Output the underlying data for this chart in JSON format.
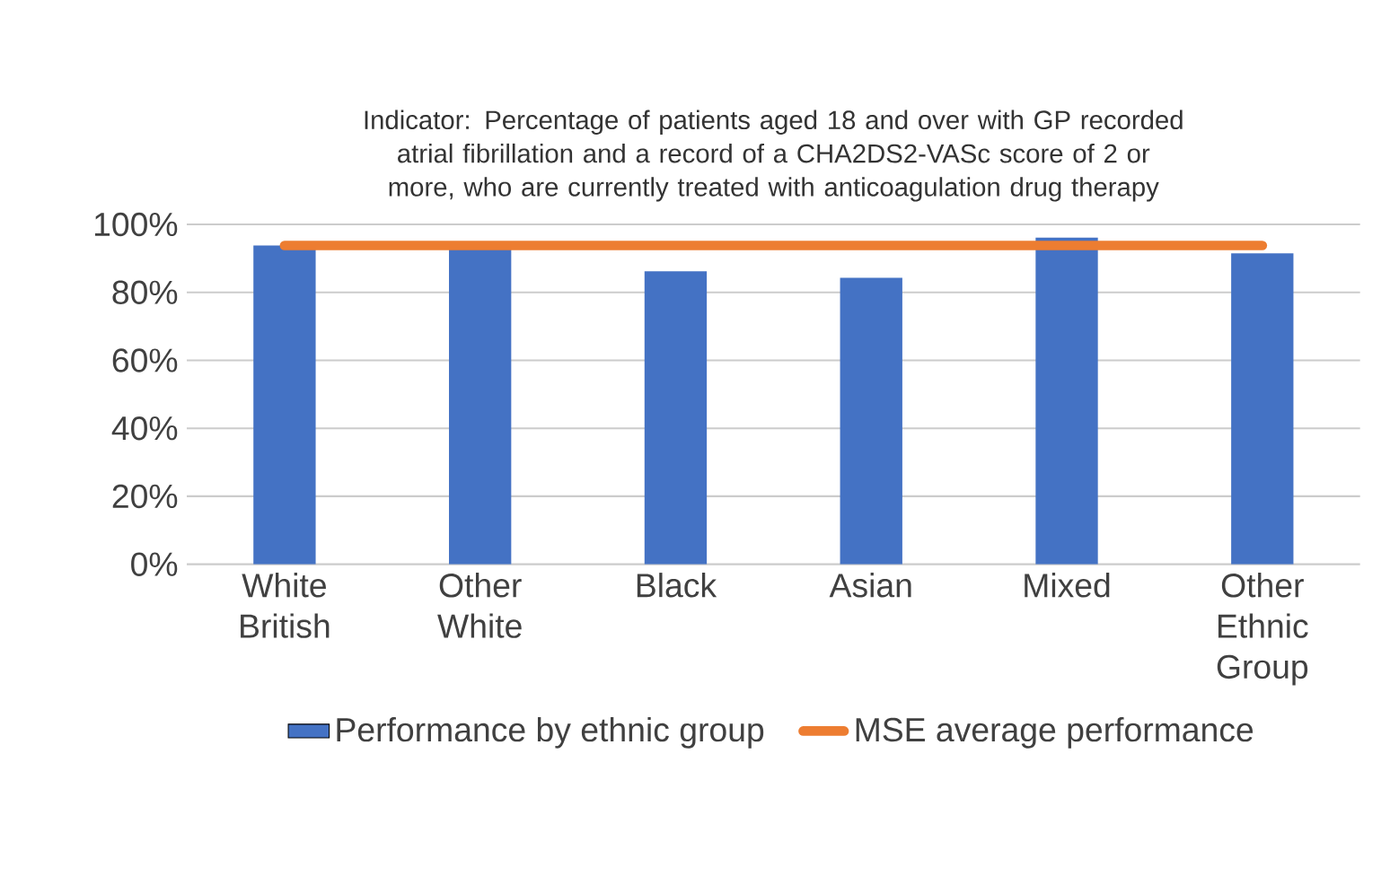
{
  "chart_data": {
    "type": "bar",
    "title": "Indicator: Percentage of patients aged 18 and over with GP recorded atrial fibrillation and a record of a CHA2DS2-VASc score of 2 or more, who are currently treated with anticoagulation drug therapy",
    "categories": [
      "White British",
      "Other White",
      "Black",
      "Asian",
      "Mixed",
      "Other Ethnic Group"
    ],
    "series": [
      {
        "name": "Performance by ethnic group",
        "color": "#4472c4",
        "values": [
          93.8,
          93,
          86.2,
          84.3,
          96.1,
          91.5
        ]
      },
      {
        "name": "MSE average performance",
        "type": "line",
        "color": "#ed7d31",
        "values": [
          93.8,
          93.8,
          93.8,
          93.8,
          93.8,
          93.8
        ]
      }
    ],
    "ylim": [
      0,
      100
    ],
    "yticks": [
      {
        "value": 0,
        "label": "0%"
      },
      {
        "value": 20,
        "label": "20%"
      },
      {
        "value": 40,
        "label": "40%"
      },
      {
        "value": 60,
        "label": "60%"
      },
      {
        "value": 80,
        "label": "80%"
      },
      {
        "value": 100,
        "label": "100%"
      }
    ],
    "grid": "y",
    "legend": "bottom",
    "marker": "none",
    "line_style": "solid"
  }
}
